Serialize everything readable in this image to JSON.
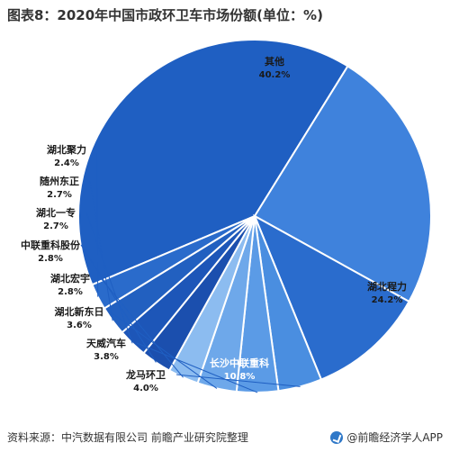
{
  "header": {
    "title": "图表8：2020年中国市政环卫车市场份额(单位：%)"
  },
  "footer": {
    "source": "资料来源：中汽数据有限公司 前瞻产业研究院整理",
    "brand": "@前瞻经济学人APP"
  },
  "chart_data": {
    "type": "pie",
    "title": "图表8：2020年中国市政环卫车市场份额(单位：%)",
    "slices": [
      {
        "label": "其他",
        "value": 40.2,
        "value_label": "40.2%",
        "color": "#1f5fc2"
      },
      {
        "label": "湖北程力",
        "value": 24.2,
        "value_label": "24.2%",
        "color": "#3f82dc"
      },
      {
        "label": "长沙中联重科",
        "value": 10.8,
        "value_label": "10.8%",
        "color": "#2a6ccd"
      },
      {
        "label": "龙马环卫",
        "value": 4.0,
        "value_label": "4.0%",
        "color": "#4a8ee0"
      },
      {
        "label": "天威汽车",
        "value": 3.8,
        "value_label": "3.8%",
        "color": "#5b9be6"
      },
      {
        "label": "湖北新东日",
        "value": 3.6,
        "value_label": "3.6%",
        "color": "#6ea8ea"
      },
      {
        "label": "湖北宏宇",
        "value": 2.8,
        "value_label": "2.8%",
        "color": "#8cbcf0"
      },
      {
        "label": "中联重科股份",
        "value": 2.8,
        "value_label": "2.8%",
        "color": "#1b4fae"
      },
      {
        "label": "湖北一专",
        "value": 2.7,
        "value_label": "2.7%",
        "color": "#1d56b8"
      },
      {
        "label": "随州东正",
        "value": 2.7,
        "value_label": "2.7%",
        "color": "#2260c0"
      },
      {
        "label": "湖北聚力",
        "value": 2.4,
        "value_label": "2.4%",
        "color": "#2a6bcb"
      }
    ],
    "legend": "none"
  }
}
